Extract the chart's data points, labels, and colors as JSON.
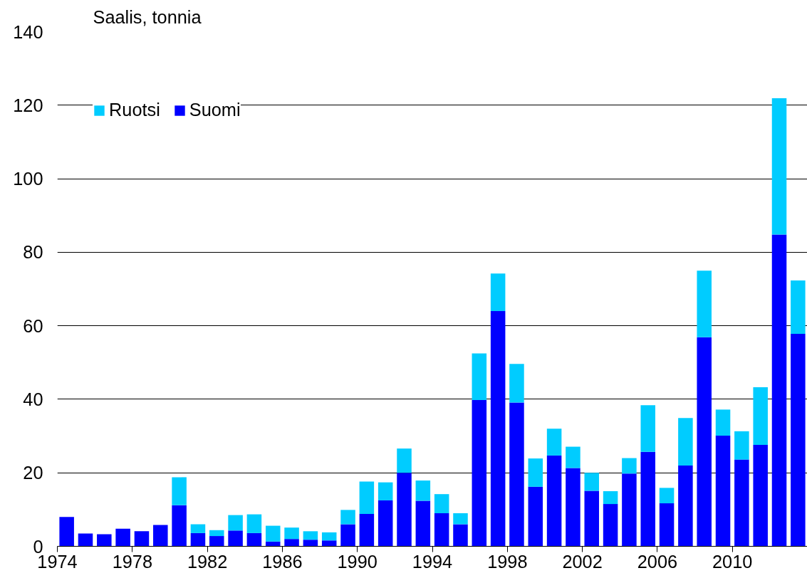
{
  "chart_data": {
    "type": "bar",
    "stacked": true,
    "ylabel": "Saalis, tonnia",
    "categories": [
      "1974",
      null,
      null,
      null,
      "1978",
      null,
      null,
      null,
      "1982",
      null,
      null,
      null,
      "1986",
      null,
      null,
      null,
      "1990",
      null,
      null,
      null,
      "1994",
      null,
      null,
      null,
      "1998",
      null,
      null,
      null,
      "2002",
      null,
      null,
      null,
      "2006",
      null,
      null,
      null,
      "2010",
      null,
      null,
      null
    ],
    "series": [
      {
        "name": "Suomi",
        "color": "#0000ff",
        "values": [
          8,
          3.5,
          3.3,
          4.8,
          4.1,
          5.8,
          11.2,
          3.6,
          2.8,
          4.3,
          3.6,
          1.3,
          2.0,
          1.8,
          1.6,
          6.0,
          8.8,
          12.5,
          20,
          12.4,
          9.0,
          6.0,
          39.8,
          64,
          39.1,
          16.2,
          24.7,
          21.3,
          15.1,
          11.5,
          19.8,
          25.7,
          11.7,
          22,
          56.9,
          30.1,
          23.6,
          27.6,
          84.8,
          57.8
        ]
      },
      {
        "name": "Ruotsi",
        "color": "#00ccff",
        "values": [
          0,
          0,
          0,
          0,
          0,
          0,
          7.6,
          2.4,
          1.6,
          4.2,
          5.1,
          4.3,
          3.1,
          2.3,
          2.2,
          3.9,
          8.8,
          4.9,
          6.6,
          5.5,
          5.2,
          3.0,
          12.7,
          10.2,
          10.5,
          7.7,
          7.3,
          5.8,
          4.9,
          3.5,
          4.2,
          12.7,
          4.2,
          12.9,
          18.1,
          7.1,
          7.7,
          15.7,
          37.1,
          14.5
        ]
      }
    ],
    "ylim": [
      0,
      140
    ],
    "yticks": [
      0,
      20,
      40,
      60,
      80,
      100,
      120,
      140
    ],
    "grid": "y",
    "legend": "top left"
  }
}
